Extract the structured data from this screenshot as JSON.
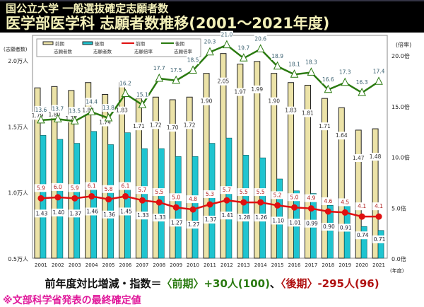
{
  "header": {
    "subtitle": "国公立大学 一般選抜確定志願者数",
    "title": "医学部医学科 志願者数推移(2001～2021年度)"
  },
  "summary": {
    "prefix": "前年度対比増減・指数＝",
    "early": "〈前期〉+30人(100)",
    "sep": "、",
    "late": "〈後期〉-295人(96)"
  },
  "note": "※文部科学省発表の最終確定値",
  "chart_data": {
    "type": "bar+line",
    "categories": [
      "2001",
      "2002",
      "2003",
      "2004",
      "2005",
      "2006",
      "2007",
      "2008",
      "2009",
      "2010",
      "2011",
      "2012",
      "2013",
      "2014",
      "2015",
      "2016",
      "2017",
      "2018",
      "2019",
      "2020",
      "2021"
    ],
    "xlabel": "(年度)",
    "ylabel_left": "(志願者数)",
    "ylabel_right": "(倍率)",
    "ylim_left": [
      0.5,
      2.0
    ],
    "yticks_left": [
      "0.5万人",
      "1.0万人",
      "1.5万人",
      "2.0万人"
    ],
    "ylim_right": [
      0,
      20
    ],
    "yticks_right": [
      "0.0倍",
      "5.0倍",
      "10.0倍",
      "15.0倍",
      "20.0倍"
    ],
    "legend": "top-left",
    "series": [
      {
        "name": "前期 志願者数",
        "type": "bar",
        "axis": "left",
        "color": "#ece3a8",
        "values": [
          1.79,
          1.8,
          1.77,
          1.83,
          1.74,
          1.83,
          1.71,
          1.72,
          1.7,
          1.72,
          1.9,
          2.05,
          1.97,
          1.99,
          1.9,
          1.83,
          1.81,
          1.71,
          1.64,
          1.47,
          1.48
        ]
      },
      {
        "name": "後期 志願者数",
        "type": "bar",
        "axis": "left",
        "color": "#1fc4d0",
        "values": [
          1.43,
          1.4,
          1.37,
          1.46,
          1.36,
          1.45,
          1.33,
          1.33,
          1.27,
          1.27,
          1.37,
          1.41,
          1.28,
          1.26,
          1.1,
          1.01,
          0.99,
          0.9,
          0.91,
          0.74,
          0.71
        ]
      },
      {
        "name": "前期 志願倍率",
        "type": "line",
        "axis": "right",
        "color": "#e01010",
        "values": [
          5.9,
          6.0,
          5.9,
          6.1,
          5.8,
          6.1,
          5.7,
          5.5,
          5.0,
          4.8,
          5.3,
          5.7,
          5.5,
          5.5,
          5.2,
          5.0,
          4.9,
          4.6,
          4.5,
          4.1,
          4.1
        ]
      },
      {
        "name": "後期 志願倍率",
        "type": "line",
        "axis": "right",
        "color": "#2a7a10",
        "values": [
          13.6,
          13.7,
          13.5,
          14.4,
          13.8,
          16.2,
          15.1,
          17.7,
          17.5,
          18.5,
          20.3,
          21.0,
          19.7,
          20.6,
          18.9,
          18.1,
          18.3,
          16.6,
          17.3,
          16.3,
          17.4
        ]
      }
    ]
  }
}
